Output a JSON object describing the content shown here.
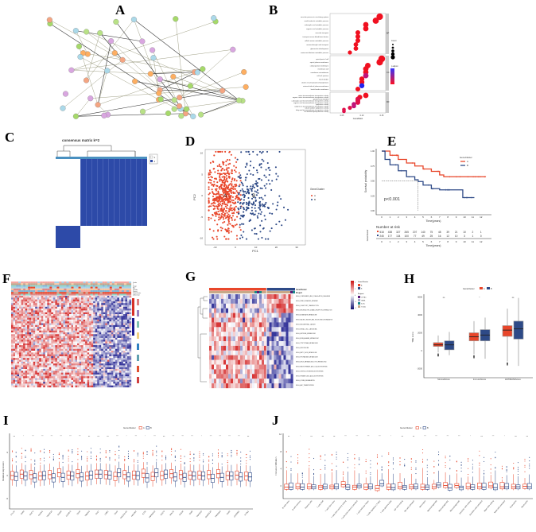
{
  "panels": {
    "A": "A",
    "B": "B",
    "C": "C",
    "D": "D",
    "E": "E",
    "F": "F",
    "G": "G",
    "H": "H",
    "I": "I",
    "J": "J"
  },
  "colors": {
    "clusterA": "#e8462a",
    "clusterB": "#2e4a87",
    "heatHigh": "#d73027",
    "heatLow": "#2b2b9a",
    "consensus": "#2d4aa8"
  },
  "chart_data": [
    {
      "id": "A",
      "type": "network",
      "node_count": 60,
      "title": ""
    },
    {
      "id": "B",
      "type": "scatter",
      "title": "",
      "xlabel": "GeneRatio",
      "xticks": [
        "0.05",
        "0.10",
        "0.15"
      ],
      "facets": [
        "BP",
        "CC",
        "MF"
      ],
      "legend": {
        "count_title": "Count",
        "color_title": "p.adjust"
      },
      "terms": [
        {
          "facet": "BP",
          "term": "vascular process in circulatory system",
          "ratio": 0.145,
          "p": 0.0
        },
        {
          "facet": "BP",
          "term": "small molecule catabolic process",
          "ratio": 0.135,
          "p": 0.0
        },
        {
          "facet": "BP",
          "term": "carboxylic acid catabolic process",
          "ratio": 0.11,
          "p": 0.0
        },
        {
          "facet": "BP",
          "term": "organic acid catabolic process",
          "ratio": 0.11,
          "p": 0.0
        },
        {
          "facet": "BP",
          "term": "vascular transport",
          "ratio": 0.09,
          "p": 0.0
        },
        {
          "facet": "BP",
          "term": "transport across blood-brain barrier",
          "ratio": 0.09,
          "p": 0.0
        },
        {
          "facet": "BP",
          "term": "cellular amine metabolic process",
          "ratio": 0.09,
          "p": 0.0
        },
        {
          "facet": "BP",
          "term": "monocarboxylic acid transport",
          "ratio": 0.085,
          "p": 0.0
        },
        {
          "facet": "BP",
          "term": "glomerulus development",
          "ratio": 0.085,
          "p": 0.0
        },
        {
          "facet": "BP",
          "term": "amino-acid betaine metabolic process",
          "ratio": 0.07,
          "p": 0.0
        },
        {
          "facet": "CC",
          "term": "apical part of cell",
          "ratio": 0.15,
          "p": 0.0
        },
        {
          "facet": "CC",
          "term": "apical plasma membrane",
          "ratio": 0.145,
          "p": 0.0
        },
        {
          "facet": "CC",
          "term": "cell projection membrane",
          "ratio": 0.115,
          "p": 0.0
        },
        {
          "facet": "CC",
          "term": "membrane raft",
          "ratio": 0.11,
          "p": 0.0
        },
        {
          "facet": "CC",
          "term": "membrane microdomain",
          "ratio": 0.11,
          "p": 0.0
        },
        {
          "facet": "CC",
          "term": "cell-cell junction",
          "ratio": 0.11,
          "p": 0.3
        },
        {
          "facet": "CC",
          "term": "brush border",
          "ratio": 0.1,
          "p": 0.0
        },
        {
          "facet": "CC",
          "term": "cluster of actin-based cell projections",
          "ratio": 0.1,
          "p": 0.0
        },
        {
          "facet": "CC",
          "term": "external side of plasma membrane",
          "ratio": 0.1,
          "p": 1.0
        },
        {
          "facet": "CC",
          "term": "brush border membrane",
          "ratio": 0.09,
          "p": 0.0
        },
        {
          "facet": "MF",
          "term": "anion transmembrane transporter activity",
          "ratio": 0.11,
          "p": 0.0
        },
        {
          "facet": "MF",
          "term": "organic anion transmembrane transporter activity",
          "ratio": 0.095,
          "p": 0.05
        },
        {
          "facet": "MF",
          "term": "growth factor binding",
          "ratio": 0.09,
          "p": 0.1
        },
        {
          "facet": "MF",
          "term": "carboxylic acid transmembrane transporter activity",
          "ratio": 0.09,
          "p": 0.1
        },
        {
          "facet": "MF",
          "term": "organic acid transmembrane transporter activity",
          "ratio": 0.09,
          "p": 0.1
        },
        {
          "facet": "MF",
          "term": "symporter activity",
          "ratio": 0.08,
          "p": 0.3
        },
        {
          "facet": "MF",
          "term": "sodium ion transmembrane transporter activity",
          "ratio": 0.08,
          "p": 0.3
        },
        {
          "facet": "MF",
          "term": "solute:sodium symporter activity",
          "ratio": 0.07,
          "p": 0.2
        },
        {
          "facet": "MF",
          "term": "fatty acid transmembrane transporter activity",
          "ratio": 0.055,
          "p": 0.1
        },
        {
          "facet": "MF",
          "term": "nucleotide diphosphatase activity",
          "ratio": 0.055,
          "p": 0.1
        }
      ]
    },
    {
      "id": "C",
      "type": "heatmap",
      "title": "consensus matrix k=2",
      "legend": [
        "1",
        "2"
      ],
      "cluster_fraction": [
        0.27,
        0.73
      ]
    },
    {
      "id": "D",
      "type": "scatter",
      "xlabel": "PC1",
      "ylabel": "PC2",
      "xlim": [
        -15,
        33
      ],
      "ylim": [
        -11,
        11
      ],
      "xticks": [
        -10,
        0,
        10,
        20,
        30
      ],
      "yticks": [
        -10,
        -5,
        0,
        5,
        10
      ],
      "legend_title": "GeneCluster",
      "series": [
        {
          "name": "A",
          "n": 520,
          "center": [
            -5,
            0
          ],
          "sd": [
            4,
            4.2
          ]
        },
        {
          "name": "B",
          "n": 245,
          "center": [
            9,
            0
          ],
          "sd": [
            7,
            5
          ]
        }
      ]
    },
    {
      "id": "E",
      "type": "line",
      "xlabel": "Time(years)",
      "ylabel": "Survival probability",
      "xlim": [
        0,
        13
      ],
      "ylim": [
        0,
        1
      ],
      "xticks": [
        0,
        1,
        2,
        3,
        4,
        5,
        6,
        7,
        8,
        9,
        10,
        11,
        12
      ],
      "yticks": [
        "0.00",
        "0.25",
        "0.50",
        "0.75",
        "1.00"
      ],
      "legend_title": "GeneCluster",
      "pvalue": "p<0.001",
      "risk_title": "Number at risk",
      "risk_ylabel": "GeneCluster",
      "series": [
        {
          "name": "A",
          "x": [
            0,
            1,
            2,
            3,
            4,
            5,
            6,
            7,
            7.5,
            12.6
          ],
          "y": [
            1,
            0.93,
            0.86,
            0.8,
            0.75,
            0.7,
            0.66,
            0.6,
            0.57,
            0.57
          ],
          "at_risk": [
            518,
            438,
            327,
            265,
            207,
            140,
            75,
            48,
            39,
            21,
            10,
            2,
            1
          ]
        },
        {
          "name": "B",
          "x": [
            0,
            0.4,
            1,
            2,
            3,
            4,
            4.4,
            5,
            6,
            7,
            9.7,
            9.8,
            11.2
          ],
          "y": [
            1,
            0.86,
            0.77,
            0.67,
            0.57,
            0.52,
            0.49,
            0.43,
            0.37,
            0.35,
            0.35,
            0.22,
            0.22
          ],
          "at_risk": [
            245,
            177,
            134,
            100,
            77,
            49,
            25,
            16,
            12,
            10,
            3,
            1,
            0
          ]
        }
      ],
      "median_B": 4.4
    },
    {
      "id": "F",
      "type": "heatmap",
      "annotations": [
        "Grade",
        "T",
        "Stage",
        "Age",
        "Gender",
        "Project",
        "GeneCluster",
        "Differential"
      ],
      "split": 0.68
    },
    {
      "id": "G",
      "type": "heatmap",
      "annotations": [
        "GeneCluster",
        "Project"
      ],
      "legend_titles": [
        "GeneCluster",
        "Project"
      ],
      "legend_items": [
        "A",
        "B",
        "CPTAC",
        "GBML",
        "ICGC",
        "TCGA"
      ],
      "scale": [
        "2",
        "1",
        "0",
        "-1",
        "-2"
      ],
      "rows": [
        "KEGG_COMPLEMENT_AND_COAGULATION_CASCADES",
        "KEGG_PPAR_SIGNALING_PATHWAY",
        "KEGG_OLFACTORY_TRANSDUCTION",
        "KEGG_NEUROACTIVE_LIGAND_RECEPTOR_INTERACTION",
        "KEGG_BUTANOATE_METABOLISM",
        "KEGG_VALINE_LEUCINE_AND_ISOLEUCINE_DEGRADATION",
        "KEGG_ENDOMETRIAL_CANCER",
        "KEGG_RENAL_CELL_CARCINOMA",
        "KEGG_HISTIDINE_METABOLISM",
        "KEGG_BETA_ALANINE_METABOLISM",
        "KEGG_TRYPTOPHAN_METABOLISM",
        "KEGG_PEROXISOME",
        "KEGG_FATTY_ACID_METABOLISM",
        "KEGG_PROPANOATE_METABOLISM",
        "KEGG_DRUG_METABOLISM_CYTOCHROME_P450",
        "KEGG_PANTOTHENATE_AND_COA_BIOSYNTHESIS",
        "KEGG_STEROID_HORMONE_BIOSYNTHESIS",
        "KEGG_PRIMARY_BILE_ACID_BIOSYNTHESIS",
        "KEGG_LYSINE_DEGRADATION",
        "KEGG_ABC_TRANSPORTERS"
      ],
      "split": 0.67
    },
    {
      "id": "H",
      "type": "box",
      "ylabel": "TME score",
      "ylim": [
        -2800,
        6300
      ],
      "yticks": [
        -2000,
        0,
        2000,
        4000,
        6000
      ],
      "legend_title": "GeneCluster",
      "series_names": [
        "A",
        "B"
      ],
      "categories": [
        "StromalScore",
        "ImmuneScore",
        "ESTIMATEScore"
      ],
      "signif": [
        "ns",
        "*",
        "ns"
      ],
      "stats": {
        "A": [
          [
            -200,
            480,
            650,
            900,
            1700
          ],
          [
            -400,
            1100,
            1550,
            2000,
            3300
          ],
          [
            -1200,
            1600,
            2300,
            2800,
            4700
          ]
        ],
        "B": [
          [
            -500,
            100,
            650,
            1100,
            2100
          ],
          [
            -900,
            1100,
            1750,
            2350,
            3700
          ],
          [
            -1700,
            1300,
            2450,
            3300,
            5900
          ]
        ]
      }
    },
    {
      "id": "I",
      "type": "box",
      "ylabel": "Relative Expression",
      "ylim": [
        -9,
        10
      ],
      "yticks": [
        -5,
        0,
        5
      ],
      "legend_title": "GeneCluster",
      "series_names": [
        "A",
        "B"
      ],
      "categories": [
        "CTLA4",
        "CD86",
        "CD274",
        "PDCD1",
        "TNFSF18",
        "CD200",
        "CD40LG",
        "CD48",
        "TMIGD2",
        "CD27",
        "LAIR1",
        "CD44",
        "PDCD1LG2",
        "HAVCR2",
        "ICOS",
        "TNFRSF18",
        "CD276",
        "HHLA2",
        "CD160",
        "CD80",
        "TNFSF15",
        "ADORA2A",
        "TNFRSF9",
        "CD28",
        "CD200R1",
        "VTCN1"
      ],
      "signif": [
        "ns",
        "*",
        "***",
        "***",
        "***",
        "***",
        "***",
        "***",
        "ns",
        "ns",
        "ns",
        "***",
        "*",
        "***",
        "*",
        "***",
        "ns",
        "***",
        "***",
        "***",
        "*",
        "***",
        "***",
        "***",
        "***",
        "ns"
      ],
      "medA": [
        0,
        0.3,
        0.2,
        -0.1,
        0.2,
        0.6,
        0.1,
        0.4,
        -0.1,
        0.3,
        0.2,
        -0.2,
        0.2,
        0.1,
        0.5,
        -0.2,
        0,
        0.4,
        0.2,
        0.1,
        0.1,
        0.2,
        0.4,
        0,
        0.1,
        -0.1
      ],
      "medB": [
        -0.2,
        -0.1,
        -0.5,
        0,
        -0.5,
        -0.4,
        -0.1,
        -0.3,
        0.1,
        0.3,
        0.1,
        0.6,
        -0.3,
        0,
        -0.5,
        0.6,
        0.3,
        -0.3,
        -0.4,
        -0.1,
        -0.1,
        -0.6,
        -0.4,
        -0.1,
        -0.3,
        -0.3
      ]
    },
    {
      "id": "J",
      "type": "box",
      "ylabel": "Immune infiltration",
      "ylim": [
        -4,
        12.5
      ],
      "yticks": [
        0,
        4,
        8,
        12
      ],
      "legend_title": "GeneCluster",
      "series_names": [
        "A",
        "B"
      ],
      "categories": [
        "B cells naive",
        "B cells memory",
        "Plasma cells",
        "T cells CD8",
        "T cells CD4 naive",
        "T cells CD4 memory resting",
        "T cells CD4 memory activated",
        "T cells follicular helper",
        "T cells regulatory (Tregs)",
        "T cells gamma delta",
        "NK cells resting",
        "NK cells activated",
        "Monocytes",
        "Macrophages M0",
        "Macrophages M1",
        "Macrophages M2",
        "Dendritic cells resting",
        "Dendritic cells activated",
        "Mast cells resting",
        "Mast cells activated",
        "Eosinophils",
        "Neutrophils"
      ],
      "signif": [
        "ns",
        "*",
        "ns",
        "ns",
        "ns",
        "***",
        "***",
        "***",
        "***",
        "*",
        "ns",
        "ns",
        "***",
        "***",
        "***",
        "***",
        "*",
        "ns",
        "***",
        "*",
        "ns",
        "ns"
      ],
      "medA": [
        -0.3,
        -0.2,
        -0.2,
        -0.3,
        -0.2,
        0.3,
        -0.3,
        -0.3,
        -0.6,
        -0.3,
        -0.2,
        -0.2,
        -0.3,
        -0.2,
        0.1,
        0.1,
        -0.2,
        -0.2,
        0,
        -0.2,
        -0.2,
        -0.1
      ],
      "medB": [
        -0.3,
        -0.3,
        -0.2,
        -0.2,
        -0.2,
        -0.3,
        0,
        -0.2,
        0.5,
        -0.4,
        -0.3,
        -0.2,
        -0.3,
        0.2,
        -0.5,
        -0.4,
        -0.3,
        -0.3,
        -0.4,
        -0.2,
        -0.2,
        -0.2
      ]
    }
  ]
}
